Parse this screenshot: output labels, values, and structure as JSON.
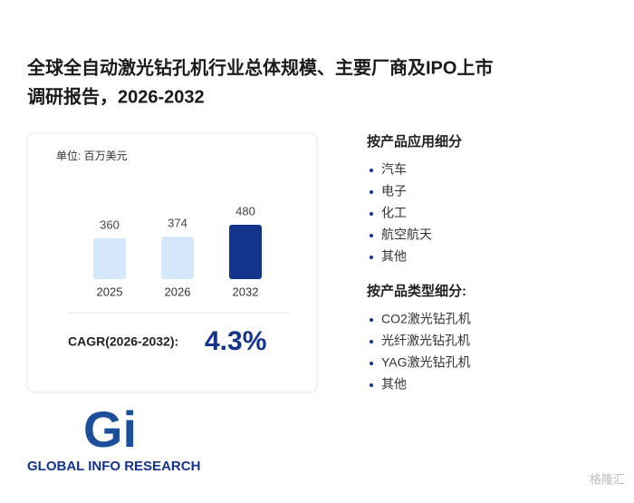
{
  "title_lines": [
    "全球全自动激光钻孔机行业总体规模、主要厂商及IPO上市",
    "调研报告，2026-2032"
  ],
  "chart_data": {
    "type": "bar",
    "unit": "单位: 百万美元",
    "categories": [
      "2025",
      "2026",
      "2032"
    ],
    "values": [
      360,
      374,
      480
    ],
    "colors": [
      "#d5e7fa",
      "#d5e7fa",
      "#14338a"
    ]
  },
  "cagr": {
    "label": "CAGR(2026-2032):",
    "value": "4.3%"
  },
  "segments": [
    {
      "heading": "按产品应用细分",
      "items": [
        "汽车",
        "电子",
        "化工",
        "航空航天",
        "其他"
      ]
    },
    {
      "heading": "按产品类型细分:",
      "items": [
        "CO2激光钻孔机",
        "光纤激光钻孔机",
        "YAG激光钻孔机",
        "其他"
      ]
    }
  ],
  "logo": {
    "mark": "Gi",
    "text": "GLOBAL INFO RESEARCH"
  },
  "watermark": "格隆汇"
}
